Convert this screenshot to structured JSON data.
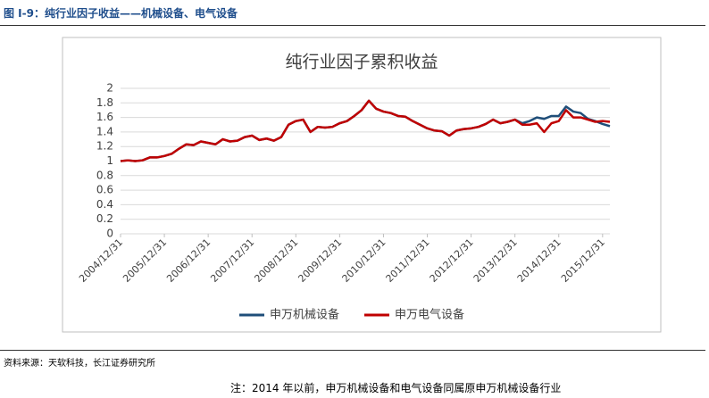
{
  "figure_title": "图 I-9：纯行业因子收益——机械设备、电气设备",
  "source": "资料来源：天软科技，长江证券研究所",
  "note": "注：2014 年以前，申万机械设备和电气设备同属原申万机械设备行业",
  "chart_data": {
    "type": "line",
    "title": "纯行业因子累积收益",
    "categories": [
      "2004/12/31",
      null,
      null,
      null,
      null,
      null,
      "2005/12/31",
      null,
      null,
      null,
      null,
      null,
      "2006/12/31",
      null,
      null,
      null,
      null,
      null,
      "2007/12/31",
      null,
      null,
      null,
      null,
      null,
      "2008/12/31",
      null,
      null,
      null,
      null,
      null,
      "2009/12/31",
      null,
      null,
      null,
      null,
      null,
      "2010/12/31",
      null,
      null,
      null,
      null,
      null,
      "2011/12/31",
      null,
      null,
      null,
      null,
      null,
      "2012/12/31",
      null,
      null,
      null,
      null,
      null,
      "2013/12/31",
      null,
      null,
      null,
      null,
      null,
      "2014/12/31",
      null,
      null,
      null,
      null,
      null,
      "2015/12/31",
      null
    ],
    "series": [
      {
        "name": "申万机械设备",
        "color": "#1f4e79",
        "values": [
          1.0,
          1.01,
          1.0,
          1.01,
          1.05,
          1.05,
          1.07,
          1.1,
          1.17,
          1.23,
          1.22,
          1.27,
          1.25,
          1.23,
          1.3,
          1.27,
          1.28,
          1.33,
          1.35,
          1.29,
          1.31,
          1.28,
          1.33,
          1.5,
          1.55,
          1.57,
          1.4,
          1.47,
          1.46,
          1.47,
          1.52,
          1.55,
          1.62,
          1.7,
          1.83,
          1.72,
          1.68,
          1.66,
          1.62,
          1.61,
          1.55,
          1.5,
          1.45,
          1.42,
          1.41,
          1.35,
          1.42,
          1.44,
          1.45,
          1.47,
          1.51,
          1.57,
          1.52,
          1.54,
          1.57,
          1.52,
          1.55,
          1.6,
          1.58,
          1.62,
          1.62,
          1.75,
          1.68,
          1.66,
          1.58,
          1.55,
          1.51,
          1.48
        ]
      },
      {
        "name": "申万电气设备",
        "color": "#c00000",
        "values": [
          1.0,
          1.01,
          1.0,
          1.01,
          1.05,
          1.05,
          1.07,
          1.1,
          1.17,
          1.23,
          1.22,
          1.27,
          1.25,
          1.23,
          1.3,
          1.27,
          1.28,
          1.33,
          1.35,
          1.29,
          1.31,
          1.28,
          1.33,
          1.5,
          1.55,
          1.57,
          1.4,
          1.47,
          1.46,
          1.47,
          1.52,
          1.55,
          1.62,
          1.7,
          1.83,
          1.72,
          1.68,
          1.66,
          1.62,
          1.61,
          1.55,
          1.5,
          1.45,
          1.42,
          1.41,
          1.35,
          1.42,
          1.44,
          1.45,
          1.47,
          1.51,
          1.57,
          1.52,
          1.54,
          1.57,
          1.5,
          1.5,
          1.52,
          1.4,
          1.52,
          1.55,
          1.7,
          1.6,
          1.6,
          1.57,
          1.54,
          1.55,
          1.54
        ]
      }
    ],
    "ylim": [
      0,
      2
    ],
    "yticks": [
      0,
      0.2,
      0.4,
      0.6,
      0.8,
      1,
      1.2,
      1.4,
      1.6,
      1.8,
      2
    ],
    "grid": true,
    "legend": "bottom"
  }
}
